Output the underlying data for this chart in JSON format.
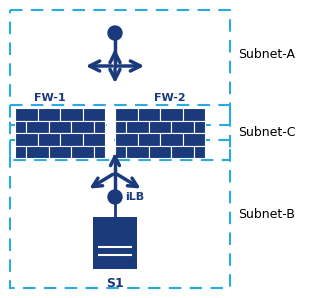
{
  "dark_blue": "#1a3a7c",
  "dashed_blue": "#29abe2",
  "bg_color": "#ffffff",
  "subnet_a_label": "Subnet-A",
  "subnet_b_label": "Subnet-B",
  "subnet_c_label": "Subnet-C",
  "fw1_label": "FW-1",
  "fw2_label": "FW-2",
  "ilb_label": "iLB",
  "s1_label": "S1",
  "figw": 3.14,
  "figh": 2.98,
  "dpi": 100
}
